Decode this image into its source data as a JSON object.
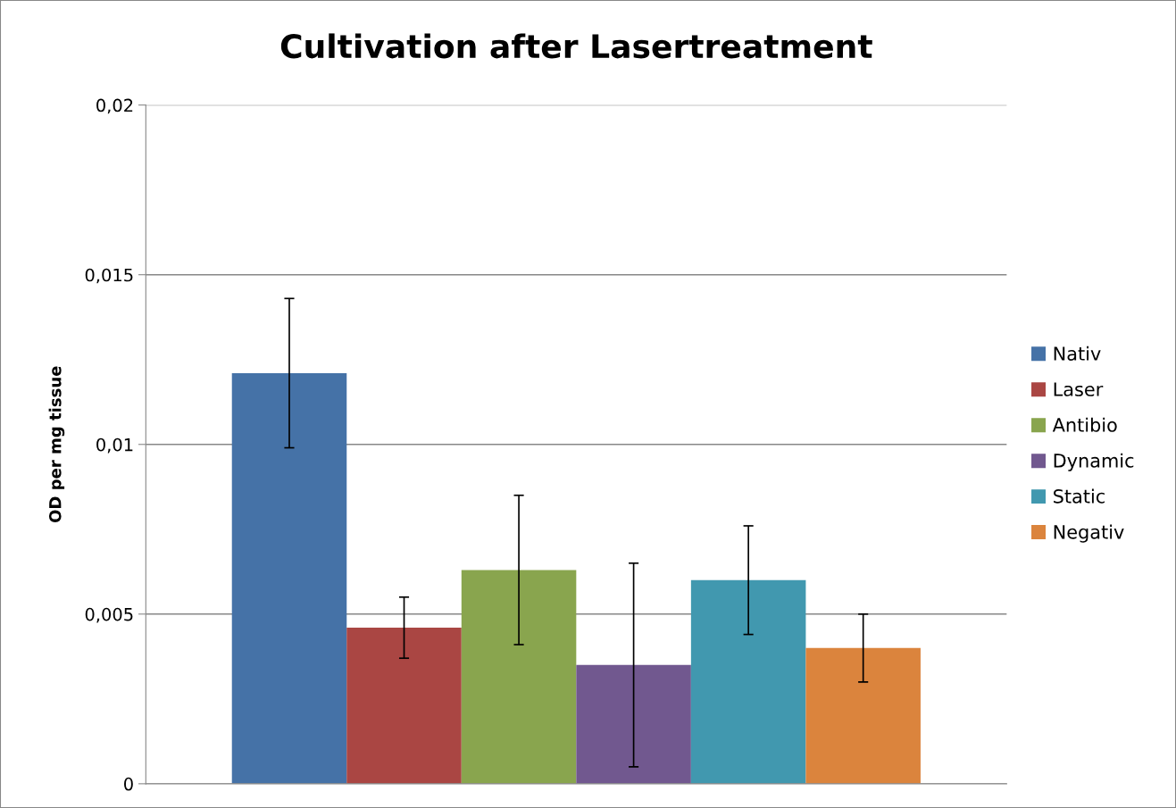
{
  "chart_data": {
    "type": "bar",
    "title": "Cultivation after Lasertreatment",
    "ylabel": "OD per mg tissue",
    "categories": [
      null
    ],
    "series": [
      {
        "name": "Nativ",
        "color": "#4572a7",
        "values": [
          0.0121
        ],
        "errors": [
          0.0022
        ]
      },
      {
        "name": "Laser",
        "color": "#aa4643",
        "values": [
          0.0046
        ],
        "errors": [
          0.0009
        ]
      },
      {
        "name": "Antibio",
        "color": "#89a54e",
        "values": [
          0.0063
        ],
        "errors": [
          0.0022
        ]
      },
      {
        "name": "Dynamic",
        "color": "#71588f",
        "values": [
          0.0035
        ],
        "errors": [
          0.003
        ]
      },
      {
        "name": "Static",
        "color": "#4198af",
        "values": [
          0.006
        ],
        "errors": [
          0.0016
        ]
      },
      {
        "name": "Negativ",
        "color": "#db843d",
        "values": [
          0.004
        ],
        "errors": [
          0.001
        ]
      }
    ],
    "ylim": [
      0,
      0.02
    ],
    "yticks": [
      0,
      {
        "value": 0.005,
        "label": "0,005"
      },
      {
        "value": 0.01,
        "label": "0,01"
      },
      {
        "value": 0.015,
        "label": "0,015"
      },
      {
        "value": 0.02,
        "label": "0,02"
      }
    ],
    "grid": "y",
    "legend": "right",
    "tick_labels": "y"
  }
}
